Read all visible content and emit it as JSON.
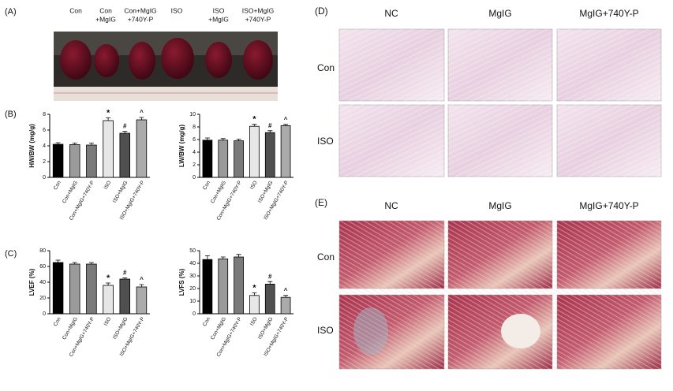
{
  "panels": {
    "a": {
      "label": "(A)",
      "groups": [
        [
          "Con"
        ],
        [
          "Con",
          "+MgIG"
        ],
        [
          "Con+MgIG",
          "+740Y-P"
        ],
        [
          "ISO"
        ],
        [
          "ISO",
          "+MgIG"
        ],
        [
          "ISO+MgIG",
          "+740Y-P"
        ]
      ]
    },
    "d": {
      "label": "(D)",
      "columns": [
        "NC",
        "MgIG",
        "MgIG+740Y-P"
      ],
      "rows": [
        "Con",
        "ISO"
      ]
    },
    "e": {
      "label": "(E)",
      "columns": [
        "NC",
        "MgIG",
        "MgIG+740Y-P"
      ],
      "rows": [
        "Con",
        "ISO"
      ]
    },
    "b": {
      "label": "(B)"
    },
    "c": {
      "label": "(C)"
    }
  },
  "chart_data": [
    {
      "type": "bar",
      "y_label": "HW/BW (mg/g)",
      "categories": [
        "Con",
        "Con+MgIG",
        "Con+MgIG+740Y-P",
        "ISO",
        "ISO+MgIG",
        "ISO+MgIG+740Y-P"
      ],
      "values": [
        4.2,
        4.15,
        4.1,
        7.2,
        5.6,
        7.3
      ],
      "errors": [
        0.2,
        0.2,
        0.25,
        0.35,
        0.25,
        0.3
      ],
      "annotations": [
        null,
        null,
        null,
        "*",
        "#",
        "^"
      ],
      "colors": [
        "#000000",
        "#9a9a9a",
        "#7a7a7a",
        "#e6e6e6",
        "#505050",
        "#ababab"
      ],
      "ylim": [
        0,
        8
      ],
      "yticks": [
        0,
        2,
        4,
        6,
        8
      ]
    },
    {
      "type": "bar",
      "y_label": "LW/BW (mg/g)",
      "categories": [
        "Con",
        "Con+MgIG",
        "Con+MgIG+740Y-P",
        "ISO",
        "ISO+MgIG",
        "ISO+MgIG+740Y-P"
      ],
      "values": [
        5.9,
        5.9,
        5.8,
        8.1,
        7.1,
        8.2
      ],
      "errors": [
        0.35,
        0.25,
        0.25,
        0.3,
        0.3,
        0.2
      ],
      "annotations": [
        null,
        null,
        null,
        "*",
        "#",
        "^"
      ],
      "colors": [
        "#000000",
        "#9a9a9a",
        "#7a7a7a",
        "#e6e6e6",
        "#505050",
        "#ababab"
      ],
      "ylim": [
        0,
        10
      ],
      "yticks": [
        0,
        2,
        4,
        6,
        8,
        10
      ]
    },
    {
      "type": "bar",
      "y_label": "LVEF (%)",
      "categories": [
        "Con",
        "Con+MgIG",
        "Con+MgIG+740Y-P",
        "ISO",
        "ISO+MgIG",
        "ISO+MgIG+740Y-P"
      ],
      "values": [
        65,
        63,
        63,
        36,
        44,
        34
      ],
      "errors": [
        3,
        2,
        2,
        3,
        1.5,
        3
      ],
      "annotations": [
        null,
        null,
        null,
        "*",
        "#",
        "^"
      ],
      "colors": [
        "#000000",
        "#9a9a9a",
        "#7a7a7a",
        "#e6e6e6",
        "#505050",
        "#ababab"
      ],
      "ylim": [
        0,
        80
      ],
      "yticks": [
        0,
        20,
        40,
        60,
        80
      ]
    },
    {
      "type": "bar",
      "y_label": "LVFS (%)",
      "categories": [
        "Con",
        "Con+MgIG",
        "Con+MgIG+740Y-P",
        "ISO",
        "ISO+MgIG",
        "ISO+MgIG+740Y-P"
      ],
      "values": [
        43,
        43.5,
        45,
        14.5,
        23.5,
        13
      ],
      "errors": [
        3,
        1.5,
        2,
        2,
        2,
        1.5
      ],
      "annotations": [
        null,
        null,
        null,
        "*",
        "#",
        "^"
      ],
      "colors": [
        "#000000",
        "#9a9a9a",
        "#7a7a7a",
        "#e6e6e6",
        "#505050",
        "#ababab"
      ],
      "ylim": [
        0,
        50
      ],
      "yticks": [
        0,
        10,
        20,
        30,
        40,
        50
      ]
    }
  ]
}
